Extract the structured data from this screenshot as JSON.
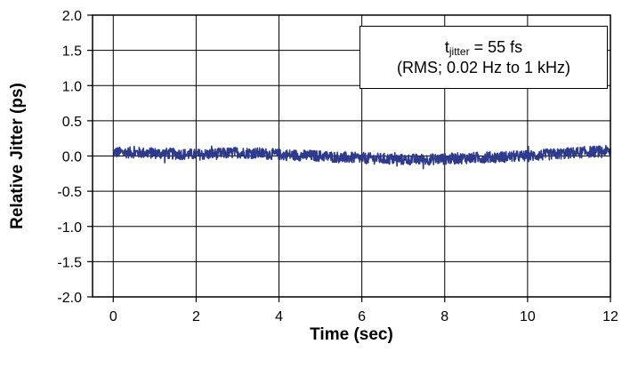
{
  "chart_data": {
    "type": "line",
    "title": "",
    "xlabel": "Time (sec)",
    "ylabel": "Relative Jitter (ps)",
    "xlim": [
      -0.5,
      12
    ],
    "ylim": [
      -2.0,
      2.0
    ],
    "x_ticks": [
      0,
      2,
      4,
      6,
      8,
      10,
      12
    ],
    "x_tick_labels": [
      "0",
      "2",
      "4",
      "6",
      "8",
      "10",
      "12"
    ],
    "y_ticks": [
      2.0,
      1.5,
      1.0,
      0.5,
      0.0,
      -0.5,
      -1.0,
      -1.5,
      -2.0
    ],
    "y_tick_labels": [
      "2.0",
      "1.5",
      "1.0",
      "0.5",
      "0.0",
      "-0.5",
      "-1.0",
      "-1.5",
      "-2.0"
    ],
    "grid": true,
    "series_color": "#2e3a8c",
    "series": [
      {
        "x": [
          0,
          0.5,
          1,
          1.5,
          2,
          2.5,
          3,
          3.5,
          4,
          4.5,
          5,
          5.5,
          6,
          6.5,
          7,
          7.5,
          8,
          8.5,
          9,
          9.5,
          10,
          10.5,
          11,
          11.5,
          12
        ],
        "values": [
          0.05,
          0.05,
          0.04,
          0.03,
          0.02,
          0.03,
          0.05,
          0.04,
          0.02,
          0.01,
          0.0,
          -0.02,
          -0.03,
          -0.04,
          -0.05,
          -0.05,
          -0.04,
          -0.03,
          -0.02,
          -0.01,
          0.0,
          0.02,
          0.04,
          0.06,
          0.07
        ],
        "noise_amplitude": 0.08
      }
    ],
    "annotation": {
      "line1_prefix": "t",
      "line1_subscript": "jitter",
      "line1_suffix": " = 55 fs",
      "line2": "(RMS; 0.02 Hz to 1 kHz)"
    }
  }
}
